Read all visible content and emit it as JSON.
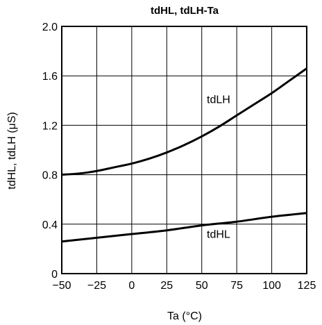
{
  "chart_data": {
    "type": "line",
    "title": "tdHL, tdLH-Ta",
    "xlabel": "Ta (°C)",
    "ylabel": "tdHL, tdLH (μS)",
    "xlim": [
      -50,
      125
    ],
    "ylim": [
      0,
      2.0
    ],
    "x_ticks": [
      -50,
      -25,
      0,
      25,
      50,
      75,
      100,
      125
    ],
    "x_tick_labels": [
      "−50",
      "−25",
      "0",
      "25",
      "50",
      "75",
      "100",
      "125"
    ],
    "y_ticks": [
      0,
      0.4,
      0.8,
      1.2,
      1.6,
      2.0
    ],
    "y_tick_labels": [
      "0",
      "0.4",
      "0.8",
      "1.2",
      "1.6",
      "2.0"
    ],
    "grid": true,
    "series": [
      {
        "name": "tdLH",
        "x": [
          -50,
          -37.5,
          -25,
          -12.5,
          0,
          12.5,
          25,
          37.5,
          50,
          62.5,
          75,
          87.5,
          100,
          112.5,
          125
        ],
        "y": [
          0.8,
          0.81,
          0.83,
          0.86,
          0.89,
          0.93,
          0.98,
          1.04,
          1.11,
          1.19,
          1.28,
          1.37,
          1.46,
          1.56,
          1.66
        ]
      },
      {
        "name": "tdHL",
        "x": [
          -50,
          -25,
          0,
          25,
          50,
          75,
          100,
          125
        ],
        "y": [
          0.26,
          0.29,
          0.32,
          0.35,
          0.39,
          0.42,
          0.46,
          0.49
        ]
      }
    ],
    "series_labels": [
      {
        "name": "tdLH",
        "x": 62,
        "y": 1.38
      },
      {
        "name": "tdHL",
        "x": 62,
        "y": 0.29
      }
    ]
  }
}
